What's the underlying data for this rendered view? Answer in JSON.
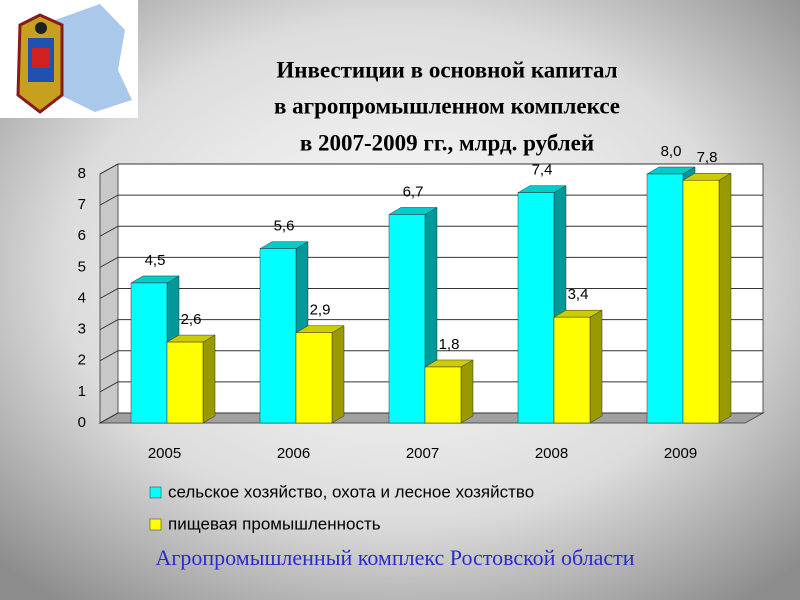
{
  "chart_data": {
    "type": "bar3d",
    "title": [
      "Инвестиции в основной капитал",
      "в агропромышленном комплексе",
      "в 2007-2009 гг., млрд. рублей"
    ],
    "categories": [
      "2005",
      "2006",
      "2007",
      "2008",
      "2009"
    ],
    "series": [
      {
        "name": "сельское хозяйство, охота и лесное хозяйство",
        "color": "#00ffff",
        "values": [
          4.5,
          5.6,
          6.7,
          7.4,
          8.0
        ],
        "value_labels": [
          "4,5",
          "5,6",
          "6,7",
          "7,4",
          "8,0"
        ]
      },
      {
        "name": "пищевая промышленность",
        "color": "#ffff00",
        "values": [
          2.6,
          2.9,
          1.8,
          3.4,
          7.8
        ],
        "value_labels": [
          "2,6",
          "2,9",
          "1,8",
          "3,4",
          "7,8"
        ]
      }
    ],
    "ylim": [
      0,
      8
    ],
    "yticks": [
      0,
      1,
      2,
      3,
      4,
      5,
      6,
      7,
      8
    ],
    "grid": true
  },
  "footer": "Агропромышленный комплекс Ростовской области"
}
